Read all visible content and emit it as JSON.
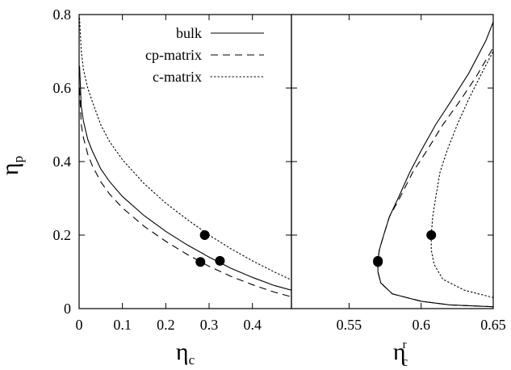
{
  "chart_data": {
    "type": "line",
    "y_axis": {
      "label_main": "η",
      "label_sub": "p",
      "ticks": [
        "0",
        "0.2",
        "0.4",
        "0.6",
        "0.8"
      ],
      "tick_values": [
        0,
        0.2,
        0.4,
        0.6,
        0.8
      ],
      "ylim": [
        0,
        0.8
      ]
    },
    "legend": {
      "position": "top-right of left panel",
      "entries": [
        {
          "label": "bulk",
          "dash": "solid"
        },
        {
          "label": "cp-matrix",
          "dash": "dashed"
        },
        {
          "label": "c-matrix",
          "dash": "dotted"
        }
      ]
    },
    "panels": [
      {
        "x_axis": {
          "label_main": "η",
          "label_sub": "c",
          "label_sup": "",
          "ticks": [
            "0",
            "0.1",
            "0.2",
            "0.3",
            "0.4"
          ],
          "tick_values": [
            0,
            0.1,
            0.2,
            0.3,
            0.4
          ],
          "xlim": [
            0,
            0.49
          ]
        },
        "series": [
          {
            "label": "bulk",
            "dash": "solid",
            "points": [
              [
                0.001,
                0.66
              ],
              [
                0.005,
                0.55
              ],
              [
                0.01,
                0.51
              ],
              [
                0.02,
                0.46
              ],
              [
                0.03,
                0.43
              ],
              [
                0.05,
                0.38
              ],
              [
                0.07,
                0.346
              ],
              [
                0.1,
                0.305
              ],
              [
                0.15,
                0.253
              ],
              [
                0.2,
                0.21
              ],
              [
                0.25,
                0.173
              ],
              [
                0.3,
                0.14
              ],
              [
                0.35,
                0.11
              ],
              [
                0.4,
                0.085
              ],
              [
                0.45,
                0.063
              ],
              [
                0.49,
                0.05
              ]
            ]
          },
          {
            "label": "cp-matrix",
            "dash": "dashed",
            "points": [
              [
                0.001,
                0.6
              ],
              [
                0.005,
                0.5
              ],
              [
                0.01,
                0.465
              ],
              [
                0.02,
                0.42
              ],
              [
                0.03,
                0.39
              ],
              [
                0.05,
                0.345
              ],
              [
                0.07,
                0.312
              ],
              [
                0.1,
                0.274
              ],
              [
                0.15,
                0.224
              ],
              [
                0.2,
                0.183
              ],
              [
                0.25,
                0.147
              ],
              [
                0.3,
                0.115
              ],
              [
                0.35,
                0.088
              ],
              [
                0.4,
                0.065
              ],
              [
                0.45,
                0.045
              ],
              [
                0.49,
                0.032
              ]
            ]
          },
          {
            "label": "c-matrix",
            "dash": "dotted",
            "points": [
              [
                0.001,
                0.79
              ],
              [
                0.005,
                0.7
              ],
              [
                0.01,
                0.65
              ],
              [
                0.02,
                0.6
              ],
              [
                0.03,
                0.565
              ],
              [
                0.05,
                0.5
              ],
              [
                0.07,
                0.455
              ],
              [
                0.1,
                0.405
              ],
              [
                0.15,
                0.34
              ],
              [
                0.2,
                0.287
              ],
              [
                0.25,
                0.242
              ],
              [
                0.3,
                0.2
              ],
              [
                0.35,
                0.163
              ],
              [
                0.4,
                0.13
              ],
              [
                0.45,
                0.1
              ],
              [
                0.49,
                0.078
              ]
            ]
          }
        ],
        "markers": [
          [
            0.28,
            0.127
          ],
          [
            0.29,
            0.2
          ],
          [
            0.325,
            0.13
          ]
        ]
      },
      {
        "x_axis": {
          "label_main": "η",
          "label_sub": "c",
          "label_sup": "r",
          "ticks": [
            "0.55",
            "0.6",
            "0.65"
          ],
          "tick_values": [
            0.55,
            0.6,
            0.65
          ],
          "xlim": [
            0.51,
            0.65
          ]
        },
        "series": [
          {
            "label": "bulk",
            "dash": "solid",
            "points": [
              [
                0.65,
                0.005
              ],
              [
                0.62,
                0.01
              ],
              [
                0.6,
                0.02
              ],
              [
                0.58,
                0.04
              ],
              [
                0.572,
                0.07
              ],
              [
                0.57,
                0.1
              ],
              [
                0.57,
                0.13
              ],
              [
                0.571,
                0.16
              ],
              [
                0.574,
                0.2
              ],
              [
                0.578,
                0.25
              ],
              [
                0.584,
                0.3
              ],
              [
                0.592,
                0.37
              ],
              [
                0.6,
                0.43
              ],
              [
                0.61,
                0.5
              ],
              [
                0.62,
                0.56
              ],
              [
                0.633,
                0.64
              ],
              [
                0.645,
                0.73
              ],
              [
                0.65,
                0.78
              ]
            ]
          },
          {
            "label": "cp-matrix",
            "dash": "dashed",
            "points": [
              [
                0.65,
                0.005
              ],
              [
                0.62,
                0.01
              ],
              [
                0.6,
                0.02
              ],
              [
                0.58,
                0.04
              ],
              [
                0.572,
                0.07
              ],
              [
                0.57,
                0.1
              ],
              [
                0.57,
                0.13
              ],
              [
                0.571,
                0.16
              ],
              [
                0.574,
                0.2
              ],
              [
                0.578,
                0.25
              ],
              [
                0.585,
                0.3
              ],
              [
                0.594,
                0.37
              ],
              [
                0.604,
                0.43
              ],
              [
                0.615,
                0.5
              ],
              [
                0.626,
                0.56
              ],
              [
                0.638,
                0.63
              ],
              [
                0.65,
                0.71
              ]
            ]
          },
          {
            "label": "c-matrix",
            "dash": "dotted",
            "points": [
              [
                0.65,
                0.03
              ],
              [
                0.63,
                0.05
              ],
              [
                0.615,
                0.08
              ],
              [
                0.609,
                0.12
              ],
              [
                0.607,
                0.16
              ],
              [
                0.607,
                0.2
              ],
              [
                0.608,
                0.25
              ],
              [
                0.61,
                0.3
              ],
              [
                0.613,
                0.37
              ],
              [
                0.618,
                0.43
              ],
              [
                0.625,
                0.5
              ],
              [
                0.633,
                0.57
              ],
              [
                0.642,
                0.64
              ],
              [
                0.65,
                0.7
              ]
            ]
          }
        ],
        "markers": [
          [
            0.57,
            0.127
          ],
          [
            0.57,
            0.13
          ],
          [
            0.607,
            0.2
          ]
        ]
      }
    ]
  }
}
